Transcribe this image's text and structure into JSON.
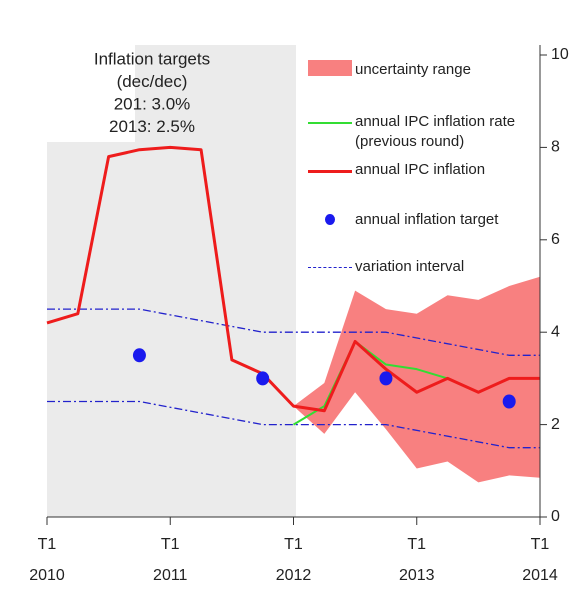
{
  "chart_data": {
    "type": "line",
    "annotation": [
      "Inflation targets",
      "(dec/dec)",
      "201: 3.0%",
      "2013: 2.5%"
    ],
    "xlim": [
      2010,
      2014
    ],
    "xticks": [
      {
        "value": 2010,
        "label": "T1",
        "year": "2010"
      },
      {
        "value": 2011,
        "label": "T1",
        "year": "2011"
      },
      {
        "value": 2012,
        "label": "T1",
        "year": "2012"
      },
      {
        "value": 2013,
        "label": "T1",
        "year": "2013"
      },
      {
        "value": 2014,
        "label": "T1",
        "year": "2014"
      }
    ],
    "ylim": [
      0,
      10
    ],
    "yticks": [
      0,
      2,
      4,
      6,
      8,
      10
    ],
    "series": [
      {
        "name": "uncertainty range",
        "kind": "band",
        "color": "#f88080",
        "x": [
          2012,
          2012.25,
          2012.5,
          2012.75,
          2013,
          2013.25,
          2013.5,
          2013.75,
          2014
        ],
        "lower": [
          2.4,
          1.8,
          2.7,
          1.9,
          1.05,
          1.2,
          0.75,
          0.9,
          0.85
        ],
        "upper": [
          2.4,
          2.9,
          4.9,
          4.5,
          4.4,
          4.8,
          4.7,
          5.0,
          5.2
        ]
      },
      {
        "name": "annual IPC inflation rate (previous round)",
        "kind": "line",
        "color": "#33dd33",
        "width": 2,
        "x": [
          2012,
          2012.25,
          2012.5,
          2012.75,
          2013,
          2013.25
        ],
        "values": [
          2.0,
          2.4,
          3.8,
          3.3,
          3.2,
          3.0
        ]
      },
      {
        "name": "annual IPC inflation",
        "kind": "line",
        "color": "#ee1c1c",
        "width": 3,
        "x": [
          2010,
          2010.25,
          2010.5,
          2010.75,
          2011,
          2011.25,
          2011.5,
          2011.75,
          2012,
          2012.25,
          2012.5,
          2012.75,
          2013,
          2013.25,
          2013.5,
          2013.75,
          2014
        ],
        "values": [
          4.2,
          4.4,
          7.8,
          7.95,
          8.0,
          7.95,
          3.4,
          3.1,
          2.4,
          2.3,
          3.8,
          3.2,
          2.7,
          3.0,
          2.7,
          3.0,
          3.0
        ]
      },
      {
        "name": "annual inflation target",
        "kind": "scatter",
        "color": "#1a1aee",
        "x": [
          2010.75,
          2011.75,
          2012.75,
          2013.75
        ],
        "values": [
          3.5,
          3.0,
          3.0,
          2.5
        ]
      },
      {
        "name": "variation interval",
        "kind": "interval",
        "color": "#2222cc",
        "x": [
          2010,
          2010.75,
          2011.75,
          2012.75,
          2013.75,
          2014
        ],
        "upper": [
          4.5,
          4.5,
          4.0,
          4.0,
          3.5,
          3.5
        ],
        "lower": [
          2.5,
          2.5,
          2.0,
          2.0,
          1.5,
          1.5
        ]
      }
    ]
  }
}
